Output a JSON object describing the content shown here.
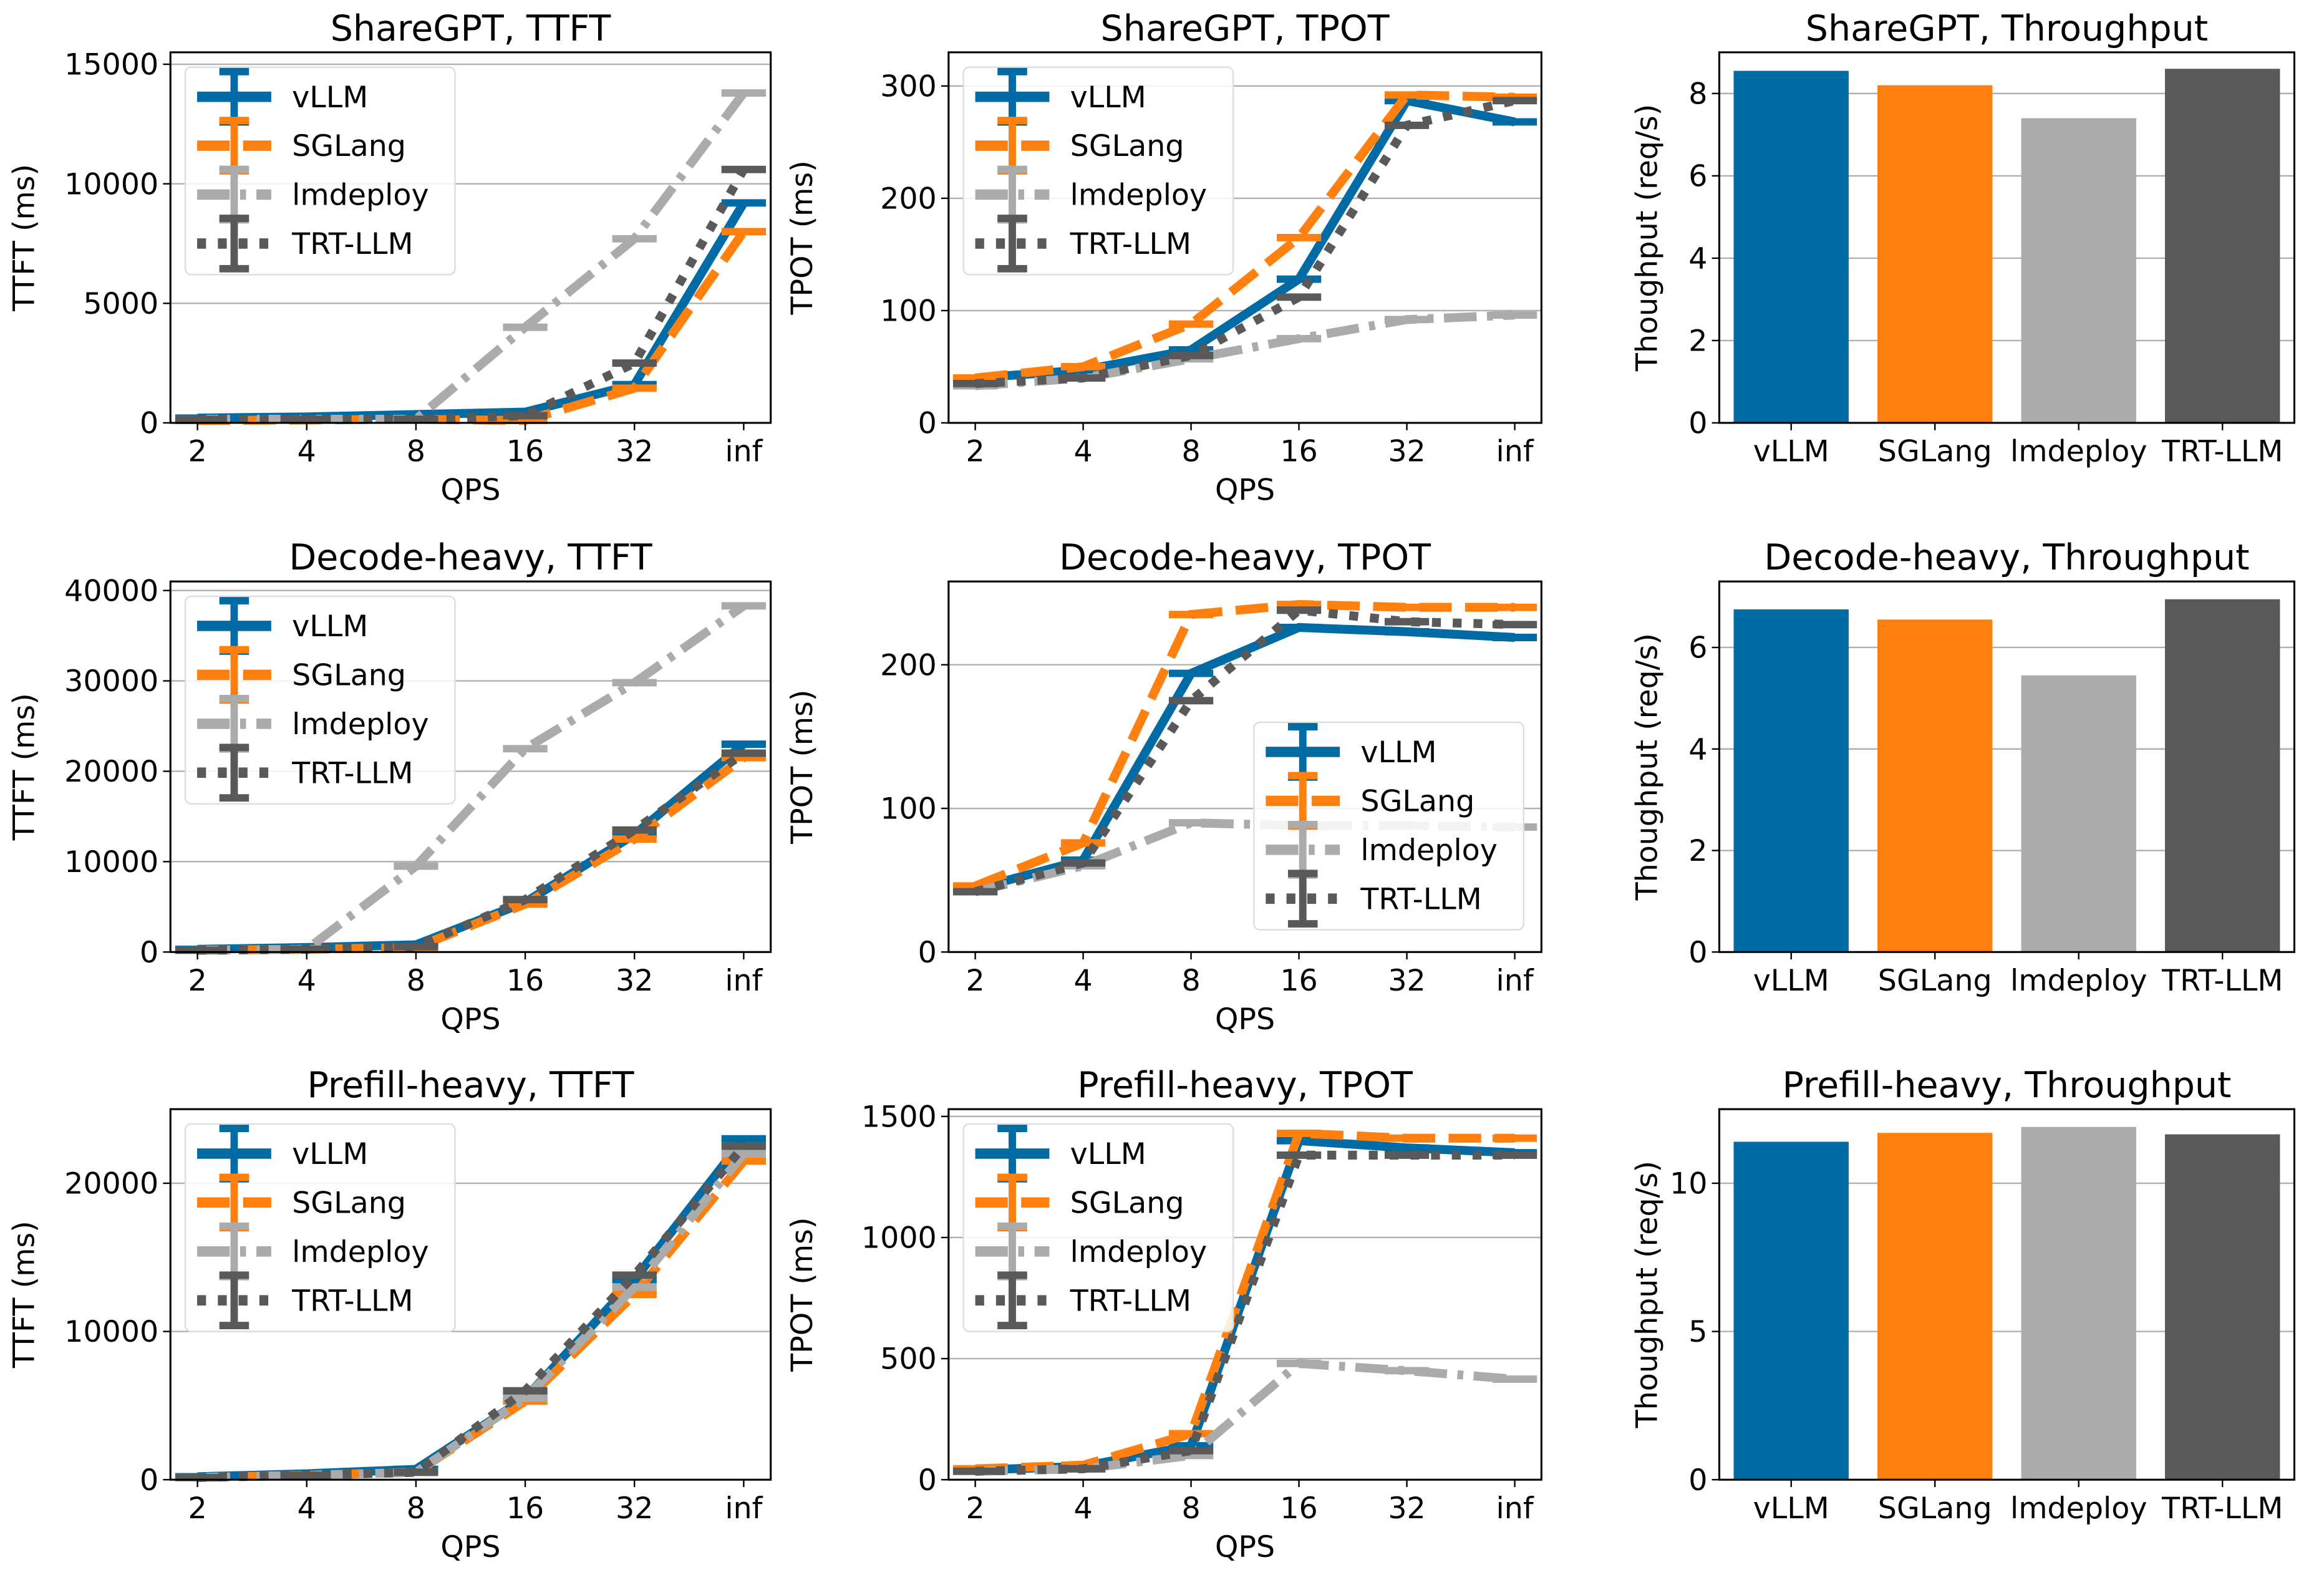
{
  "styles": {
    "vLLM": {
      "color": "#006BA4",
      "dash": ""
    },
    "SGLang": {
      "color": "#FF800E",
      "dash": "22 9"
    },
    "lmdeploy": {
      "color": "#ABABAB",
      "dash": "22 7 4 7"
    },
    "TRT-LLM": {
      "color": "#595959",
      "dash": "6 8"
    }
  },
  "chart_data": [
    {
      "type": "line",
      "title": "ShareGPT, TTFT",
      "xlabel": "QPS",
      "ylabel": "TTFT (ms)",
      "categories": [
        "2",
        "4",
        "8",
        "16",
        "32",
        "inf"
      ],
      "ylim": [
        0,
        15500
      ],
      "yticks": [
        0,
        5000,
        10000,
        15000
      ],
      "grid": "y",
      "legend": "upper-left",
      "series": [
        {
          "name": "vLLM",
          "values": [
            200,
            250,
            350,
            450,
            1600,
            9200
          ]
        },
        {
          "name": "SGLang",
          "values": [
            100,
            120,
            150,
            100,
            1450,
            8000
          ]
        },
        {
          "name": "lmdeploy",
          "values": [
            150,
            150,
            150,
            4000,
            7700,
            13800
          ]
        },
        {
          "name": "TRT-LLM",
          "values": [
            150,
            150,
            150,
            300,
            2500,
            10600
          ]
        }
      ]
    },
    {
      "type": "line",
      "title": "ShareGPT, TPOT",
      "xlabel": "QPS",
      "ylabel": "TPOT (ms)",
      "categories": [
        "2",
        "4",
        "8",
        "16",
        "32",
        "inf"
      ],
      "ylim": [
        0,
        330
      ],
      "yticks": [
        0,
        100,
        200,
        300
      ],
      "grid": "y",
      "legend": "upper-left",
      "series": [
        {
          "name": "vLLM",
          "values": [
            40,
            47,
            65,
            128,
            287,
            268
          ]
        },
        {
          "name": "SGLang",
          "values": [
            40,
            50,
            88,
            165,
            292,
            290
          ]
        },
        {
          "name": "lmdeploy",
          "values": [
            33,
            40,
            57,
            75,
            92,
            96
          ]
        },
        {
          "name": "TRT-LLM",
          "values": [
            35,
            40,
            60,
            112,
            265,
            287
          ]
        }
      ]
    },
    {
      "type": "bar",
      "title": "ShareGPT, Throughput",
      "xlabel": "",
      "ylabel": "Thoughput (req/s)",
      "categories": [
        "vLLM",
        "SGLang",
        "lmdeploy",
        "TRT-LLM"
      ],
      "values": [
        8.55,
        8.2,
        7.4,
        8.6
      ],
      "ylim": [
        0,
        9
      ],
      "yticks": [
        0,
        2,
        4,
        6,
        8
      ],
      "grid": "y"
    },
    {
      "type": "line",
      "title": "Decode-heavy, TTFT",
      "xlabel": "QPS",
      "ylabel": "TTFT (ms)",
      "categories": [
        "2",
        "4",
        "8",
        "16",
        "32",
        "inf"
      ],
      "ylim": [
        0,
        41000
      ],
      "yticks": [
        0,
        10000,
        20000,
        30000,
        40000
      ],
      "grid": "y",
      "legend": "upper-left",
      "series": [
        {
          "name": "vLLM",
          "values": [
            300,
            500,
            800,
            5500,
            13000,
            23000
          ]
        },
        {
          "name": "SGLang",
          "values": [
            200,
            300,
            500,
            5300,
            12500,
            21500
          ]
        },
        {
          "name": "lmdeploy",
          "values": [
            200,
            300,
            9500,
            22500,
            29800,
            38300
          ]
        },
        {
          "name": "TRT-LLM",
          "values": [
            200,
            300,
            600,
            5800,
            13500,
            22000
          ]
        }
      ]
    },
    {
      "type": "line",
      "title": "Decode-heavy, TPOT",
      "xlabel": "QPS",
      "ylabel": "TPOT (ms)",
      "categories": [
        "2",
        "4",
        "8",
        "16",
        "32",
        "inf"
      ],
      "ylim": [
        0,
        258
      ],
      "yticks": [
        0,
        100,
        200
      ],
      "grid": "y",
      "legend": "center-right",
      "series": [
        {
          "name": "vLLM",
          "values": [
            44,
            64,
            194,
            226,
            223,
            219
          ]
        },
        {
          "name": "SGLang",
          "values": [
            46,
            76,
            235,
            242,
            240,
            240
          ]
        },
        {
          "name": "lmdeploy",
          "values": [
            42,
            60,
            90,
            88,
            88,
            87
          ]
        },
        {
          "name": "TRT-LLM",
          "values": [
            42,
            62,
            175,
            238,
            230,
            228
          ]
        }
      ]
    },
    {
      "type": "bar",
      "title": "Decode-heavy, Throughput",
      "xlabel": "",
      "ylabel": "Thoughput (req/s)",
      "categories": [
        "vLLM",
        "SGLang",
        "lmdeploy",
        "TRT-LLM"
      ],
      "values": [
        6.75,
        6.55,
        5.45,
        6.95
      ],
      "ylim": [
        0,
        7.3
      ],
      "yticks": [
        0,
        2,
        4,
        6
      ],
      "grid": "y"
    },
    {
      "type": "line",
      "title": "Prefill-heavy, TTFT",
      "xlabel": "QPS",
      "ylabel": "TTFT (ms)",
      "categories": [
        "2",
        "4",
        "8",
        "16",
        "32",
        "inf"
      ],
      "ylim": [
        0,
        25000
      ],
      "yticks": [
        0,
        10000,
        20000
      ],
      "grid": "y",
      "legend": "upper-left",
      "series": [
        {
          "name": "vLLM",
          "values": [
            200,
            400,
            700,
            5500,
            13500,
            23000
          ]
        },
        {
          "name": "SGLang",
          "values": [
            150,
            300,
            500,
            5300,
            12500,
            21500
          ]
        },
        {
          "name": "lmdeploy",
          "values": [
            150,
            300,
            500,
            5500,
            13000,
            22000
          ]
        },
        {
          "name": "TRT-LLM",
          "values": [
            150,
            300,
            500,
            6000,
            13800,
            22500
          ]
        }
      ]
    },
    {
      "type": "line",
      "title": "Prefill-heavy, TPOT",
      "xlabel": "QPS",
      "ylabel": "TPOT (ms)",
      "categories": [
        "2",
        "4",
        "8",
        "16",
        "32",
        "inf"
      ],
      "ylim": [
        0,
        1530
      ],
      "yticks": [
        0,
        500,
        1000,
        1500
      ],
      "grid": "y",
      "legend": "upper-left",
      "series": [
        {
          "name": "vLLM",
          "values": [
            40,
            55,
            140,
            1400,
            1370,
            1350
          ]
        },
        {
          "name": "SGLang",
          "values": [
            45,
            60,
            190,
            1430,
            1410,
            1410
          ]
        },
        {
          "name": "lmdeploy",
          "values": [
            35,
            45,
            100,
            480,
            450,
            415
          ]
        },
        {
          "name": "TRT-LLM",
          "values": [
            35,
            45,
            120,
            1340,
            1340,
            1340
          ]
        }
      ]
    },
    {
      "type": "bar",
      "title": "Prefill-heavy, Throughput",
      "xlabel": "",
      "ylabel": "Thoughput (req/s)",
      "categories": [
        "vLLM",
        "SGLang",
        "lmdeploy",
        "TRT-LLM"
      ],
      "values": [
        11.4,
        11.7,
        11.9,
        11.65
      ],
      "ylim": [
        0,
        12.5
      ],
      "yticks": [
        0,
        5,
        10
      ],
      "grid": "y"
    }
  ]
}
